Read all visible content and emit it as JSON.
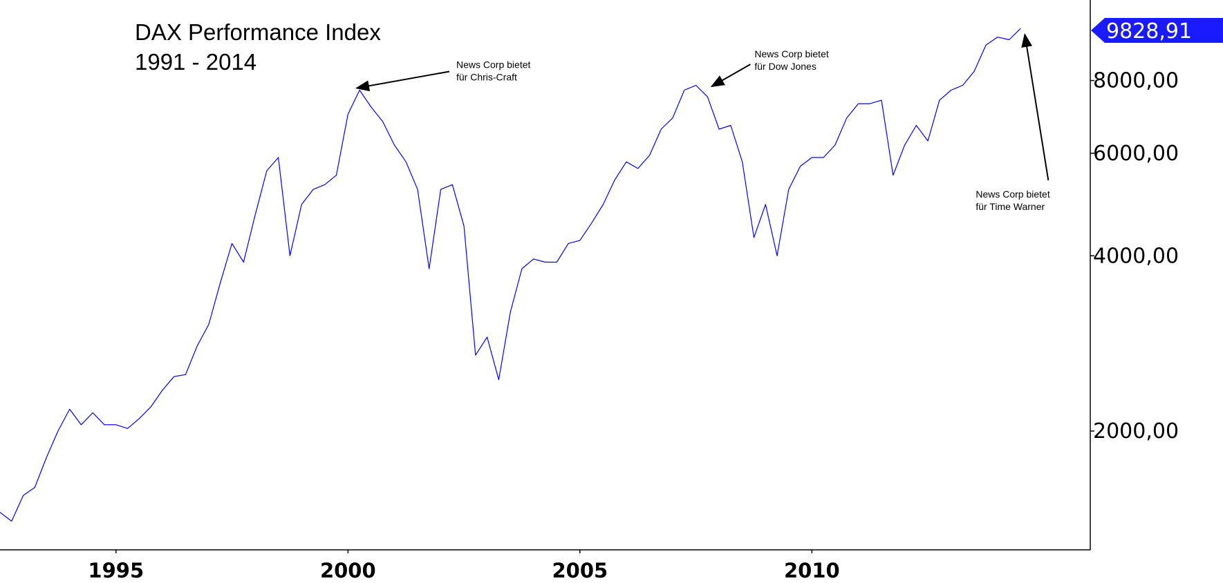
{
  "chart_data": {
    "type": "line",
    "title": "DAX Performance Index",
    "subtitle": "1991 - 2014",
    "y_scale": "log",
    "ylim": [
      1250,
      11000
    ],
    "xlim": [
      1992.5,
      2016.0
    ],
    "y_ticks": [
      {
        "value": 2000,
        "label": "2000,00"
      },
      {
        "value": 4000,
        "label": "4000,00"
      },
      {
        "value": 6000,
        "label": "6000,00"
      },
      {
        "value": 8000,
        "label": "8000,00"
      }
    ],
    "x_ticks": [
      {
        "value": 1995,
        "label": "1995"
      },
      {
        "value": 2000,
        "label": "2000"
      },
      {
        "value": 2005,
        "label": "2005"
      },
      {
        "value": 2010,
        "label": "2010"
      }
    ],
    "last_value": {
      "value": 9828.91,
      "label": "9828,91"
    },
    "series": [
      {
        "color": "#0000ff",
        "x": [
          1992.5,
          1992.75,
          1993.0,
          1993.25,
          1993.5,
          1993.75,
          1994.0,
          1994.25,
          1994.5,
          1994.75,
          1995.0,
          1995.25,
          1995.5,
          1995.75,
          1996.0,
          1996.25,
          1996.5,
          1996.75,
          1997.0,
          1997.25,
          1997.5,
          1997.75,
          1998.0,
          1998.25,
          1998.5,
          1998.75,
          1999.0,
          1999.25,
          1999.5,
          1999.75,
          2000.0,
          2000.25,
          2000.5,
          2000.75,
          2001.0,
          2001.25,
          2001.5,
          2001.75,
          2002.0,
          2002.25,
          2002.5,
          2002.75,
          2003.0,
          2003.25,
          2003.5,
          2003.75,
          2004.0,
          2004.25,
          2004.5,
          2004.75,
          2005.0,
          2005.25,
          2005.5,
          2005.75,
          2006.0,
          2006.25,
          2006.5,
          2006.75,
          2007.0,
          2007.25,
          2007.5,
          2007.75,
          2008.0,
          2008.25,
          2008.5,
          2008.75,
          2009.0,
          2009.25,
          2009.5,
          2009.75,
          2010.0,
          2010.25,
          2010.5,
          2010.75,
          2011.0,
          2011.25,
          2011.5,
          2011.75,
          2012.0,
          2012.25,
          2012.5,
          2012.75,
          2013.0,
          2013.25,
          2013.5,
          2013.75,
          2014.0,
          2014.25,
          2014.5
        ],
        "y": [
          1450,
          1400,
          1550,
          1600,
          1800,
          2000,
          2180,
          2050,
          2150,
          2050,
          2050,
          2020,
          2100,
          2200,
          2350,
          2480,
          2500,
          2800,
          3050,
          3600,
          4200,
          3900,
          4700,
          5600,
          5900,
          4000,
          4900,
          5200,
          5300,
          5500,
          7000,
          7700,
          7200,
          6800,
          6200,
          5800,
          5200,
          3800,
          5200,
          5300,
          4500,
          2700,
          2900,
          2450,
          3200,
          3800,
          3950,
          3900,
          3900,
          4200,
          4250,
          4550,
          4900,
          5400,
          5800,
          5650,
          5950,
          6600,
          6900,
          7700,
          7850,
          7500,
          6600,
          6700,
          5800,
          4300,
          4900,
          4000,
          5200,
          5700,
          5900,
          5900,
          6200,
          6900,
          7300,
          7300,
          7400,
          5500,
          6200,
          6700,
          6300,
          7400,
          7700,
          7850,
          8300,
          9200,
          9500,
          9400,
          9829
        ]
      }
    ],
    "annotations": [
      {
        "lines": [
          "News Corp bietet",
          "für Chris-Craft"
        ],
        "x": 2000.1,
        "y": 7850
      },
      {
        "lines": [
          "News Corp bietet",
          "für Dow Jones"
        ],
        "x": 2007.75,
        "y": 7900
      },
      {
        "lines": [
          "News Corp bietet",
          "für Time Warner"
        ],
        "x": 2014.5,
        "y": 9700
      }
    ]
  }
}
